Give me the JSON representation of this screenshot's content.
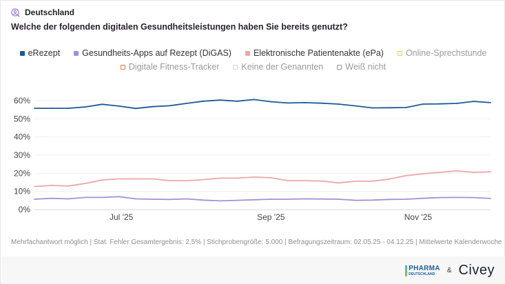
{
  "header": {
    "region": "Deutschland",
    "region_icon": "person-search-icon",
    "question": "Welche der folgenden digitalen Gesundheitsleistungen haben Sie bereits genutzt?"
  },
  "legend": [
    {
      "label": "eRezept",
      "color": "#1a5a96",
      "active": true
    },
    {
      "label": "Gesundheits-Apps auf Rezept (DiGAS)",
      "color": "#a58fd6",
      "active": true
    },
    {
      "label": "Elektronische Patientenakte (ePa)",
      "color": "#eea5a8",
      "active": true
    },
    {
      "label": "Online-Sprechstunde",
      "color": "#f2c94c",
      "active": false
    },
    {
      "label": "Digitale Fitness-Tracker",
      "color": "#e07b39",
      "active": false
    },
    {
      "label": "Keine der Genannten",
      "color": "#d5d5d5",
      "active": false
    },
    {
      "label": "Weiß nicht",
      "color": "#8a9bab",
      "active": false
    }
  ],
  "chart_data": {
    "type": "line",
    "x": [
      "2025-05-26",
      "2025-06-02",
      "2025-06-09",
      "2025-06-16",
      "2025-06-23",
      "2025-06-30",
      "2025-07-07",
      "2025-07-14",
      "2025-07-21",
      "2025-07-28",
      "2025-08-04",
      "2025-08-11",
      "2025-08-18",
      "2025-08-25",
      "2025-09-01",
      "2025-09-08",
      "2025-09-15",
      "2025-09-22",
      "2025-09-29",
      "2025-10-06",
      "2025-10-13",
      "2025-10-20",
      "2025-10-27",
      "2025-11-03",
      "2025-11-10",
      "2025-11-17",
      "2025-11-24",
      "2025-12-01"
    ],
    "series": [
      {
        "name": "eRezept",
        "color": "#1a5a96",
        "values": [
          55.8,
          55.8,
          55.8,
          56.5,
          58.0,
          57.0,
          55.7,
          56.7,
          57.2,
          58.5,
          59.7,
          60.3,
          59.7,
          60.6,
          59.4,
          58.7,
          58.9,
          58.6,
          58.1,
          57.1,
          56.0,
          56.1,
          56.2,
          58.1,
          58.2,
          58.5,
          59.6,
          58.9
        ]
      },
      {
        "name": "Gesundheits-Apps auf Rezept (DiGAS)",
        "color": "#a58fd6",
        "values": [
          5.7,
          6.2,
          5.9,
          6.7,
          6.7,
          7.1,
          5.9,
          5.7,
          5.6,
          5.9,
          5.2,
          4.8,
          5.1,
          5.4,
          5.7,
          5.7,
          5.9,
          5.8,
          5.7,
          5.1,
          5.2,
          5.6,
          5.7,
          6.2,
          6.6,
          6.7,
          6.6,
          6.1
        ]
      },
      {
        "name": "Elektronische Patientenakte (ePa)",
        "color": "#eea5a8",
        "values": [
          12.7,
          13.3,
          13.0,
          14.4,
          16.3,
          16.9,
          16.9,
          16.9,
          15.9,
          15.9,
          16.5,
          17.3,
          17.3,
          17.9,
          17.5,
          15.9,
          15.9,
          15.7,
          14.7,
          15.6,
          15.6,
          16.8,
          18.7,
          19.7,
          20.5,
          21.3,
          20.5,
          20.8
        ]
      }
    ],
    "yticks": [
      "0%",
      "10%",
      "20%",
      "30%",
      "40%",
      "50%",
      "60%"
    ],
    "ylim": [
      0,
      60
    ],
    "xticks": [
      {
        "date": "2025-07-01",
        "label": "Jul '25"
      },
      {
        "date": "2025-09-01",
        "label": "Sep '25"
      },
      {
        "date": "2025-11-01",
        "label": "Nov '25"
      }
    ],
    "grid": true,
    "legend_position": "top"
  },
  "footnote": "Mehrfachantwort möglich | Stat. Fehler Gesamtergebnis: 2,5% | Stichprobengröße: 5.000 | Befragungszeitraum: 02.05.25 - 04.12.25 | Mittelwerte Kalenderwoche",
  "logos": {
    "pharma_top": "PHARMA",
    "pharma_bottom": "DEUTSCHLAND",
    "amp": "&",
    "civey": "Civey"
  }
}
